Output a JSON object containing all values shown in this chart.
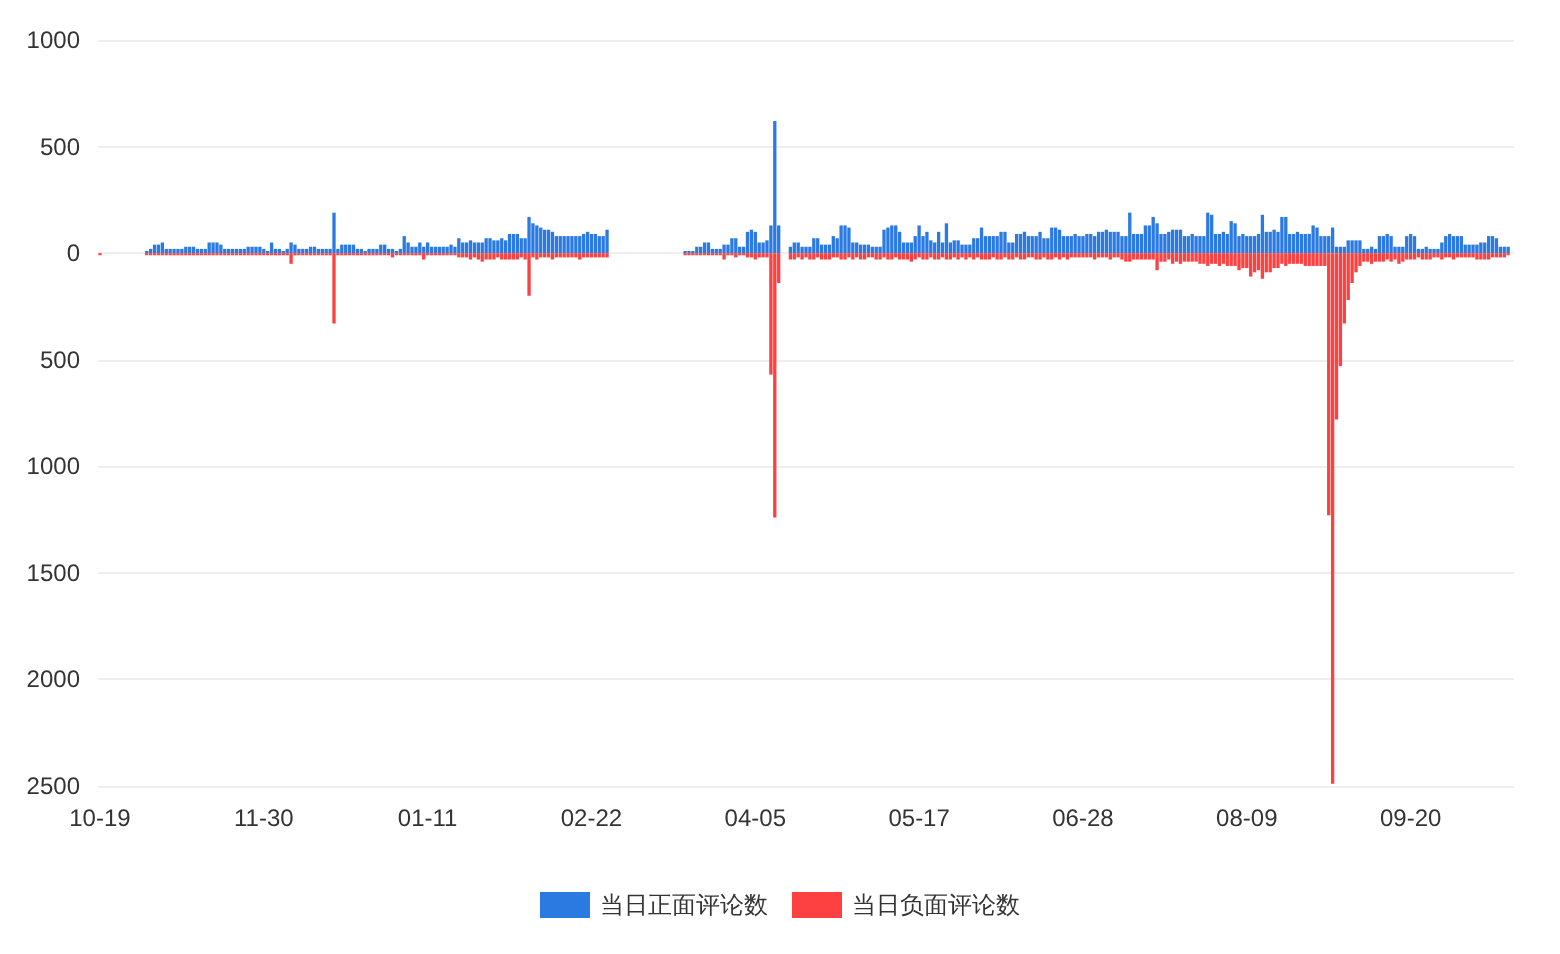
{
  "chart_data": {
    "type": "bar",
    "stacked": true,
    "grid": "y",
    "legend": "bottom",
    "categories": [
      "10-19",
      null,
      null,
      null,
      null,
      null,
      null,
      null,
      null,
      null,
      null,
      null,
      null,
      null,
      null,
      null,
      null,
      null,
      null,
      null,
      null,
      null,
      null,
      null,
      null,
      null,
      null,
      null,
      null,
      null,
      null,
      null,
      null,
      null,
      null,
      null,
      null,
      null,
      null,
      null,
      null,
      null,
      "11-30",
      null,
      null,
      null,
      null,
      null,
      null,
      null,
      null,
      null,
      null,
      null,
      null,
      null,
      null,
      null,
      null,
      null,
      null,
      null,
      null,
      null,
      null,
      null,
      null,
      null,
      null,
      null,
      null,
      null,
      null,
      null,
      null,
      null,
      null,
      null,
      null,
      null,
      null,
      null,
      null,
      null,
      "01-11",
      null,
      null,
      null,
      null,
      null,
      null,
      null,
      null,
      null,
      null,
      null,
      null,
      null,
      null,
      null,
      null,
      null,
      null,
      null,
      null,
      null,
      null,
      null,
      null,
      null,
      null,
      null,
      null,
      null,
      null,
      null,
      null,
      null,
      null,
      null,
      null,
      null,
      null,
      null,
      null,
      null,
      "02-22",
      null,
      null,
      null,
      null,
      null,
      null,
      null,
      null,
      null,
      null,
      null,
      null,
      null,
      null,
      null,
      null,
      null,
      null,
      null,
      null,
      null,
      null,
      null,
      null,
      null,
      null,
      null,
      null,
      null,
      null,
      null,
      null,
      null,
      null,
      null,
      null,
      null,
      null,
      null,
      null,
      null,
      "04-05",
      null,
      null,
      null,
      null,
      null,
      null,
      null,
      null,
      null,
      null,
      null,
      null,
      null,
      null,
      null,
      null,
      null,
      null,
      null,
      null,
      null,
      null,
      null,
      null,
      null,
      null,
      null,
      null,
      null,
      null,
      null,
      null,
      null,
      null,
      null,
      null,
      null,
      null,
      null,
      null,
      null,
      "05-17",
      null,
      null,
      null,
      null,
      null,
      null,
      null,
      null,
      null,
      null,
      null,
      null,
      null,
      null,
      null,
      null,
      null,
      null,
      null,
      null,
      null,
      null,
      null,
      null,
      null,
      null,
      null,
      null,
      null,
      null,
      null,
      null,
      null,
      null,
      null,
      null,
      null,
      null,
      null,
      null,
      null,
      "06-28",
      null,
      null,
      null,
      null,
      null,
      null,
      null,
      null,
      null,
      null,
      null,
      null,
      null,
      null,
      null,
      null,
      null,
      null,
      null,
      null,
      null,
      null,
      null,
      null,
      null,
      null,
      null,
      null,
      null,
      null,
      null,
      null,
      null,
      null,
      null,
      null,
      null,
      null,
      null,
      null,
      null,
      "08-09",
      null,
      null,
      null,
      null,
      null,
      null,
      null,
      null,
      null,
      null,
      null,
      null,
      null,
      null,
      null,
      null,
      null,
      null,
      null,
      null,
      null,
      null,
      null,
      null,
      null,
      null,
      null,
      null,
      null,
      null,
      null,
      null,
      null,
      null,
      null,
      null,
      null,
      null,
      null,
      null,
      null,
      "09-20",
      null,
      null,
      null,
      null,
      null,
      null,
      null,
      null,
      null,
      null,
      null,
      null,
      null,
      null,
      null,
      null,
      null,
      null,
      null,
      null,
      null,
      null,
      null,
      null,
      null,
      null
    ],
    "ylim": [
      -2500,
      1000
    ],
    "yticks": [
      {
        "value": -2500,
        "label": "2500"
      },
      {
        "value": -2000,
        "label": "2000"
      },
      {
        "value": -1500,
        "label": "1500"
      },
      {
        "value": -1000,
        "label": "1000"
      },
      {
        "value": -500,
        "label": "500"
      },
      0,
      500,
      1000
    ],
    "series": [
      {
        "name": "当日正面评论数",
        "color": "#2a7ae2",
        "values": [
          null,
          null,
          null,
          null,
          null,
          null,
          null,
          null,
          null,
          null,
          null,
          null,
          10,
          20,
          40,
          40,
          50,
          20,
          20,
          20,
          20,
          20,
          30,
          30,
          30,
          20,
          20,
          20,
          50,
          50,
          50,
          40,
          20,
          20,
          20,
          20,
          20,
          20,
          30,
          30,
          30,
          30,
          20,
          10,
          50,
          20,
          20,
          10,
          20,
          50,
          40,
          20,
          20,
          20,
          30,
          30,
          20,
          20,
          20,
          20,
          190,
          20,
          40,
          40,
          40,
          40,
          20,
          20,
          10,
          20,
          20,
          20,
          40,
          40,
          20,
          20,
          10,
          20,
          80,
          50,
          30,
          30,
          50,
          30,
          50,
          30,
          30,
          30,
          30,
          30,
          40,
          30,
          70,
          50,
          50,
          60,
          50,
          50,
          50,
          70,
          70,
          60,
          60,
          70,
          60,
          90,
          90,
          90,
          70,
          70,
          170,
          140,
          130,
          120,
          110,
          110,
          100,
          80,
          80,
          80,
          80,
          80,
          80,
          80,
          90,
          100,
          90,
          90,
          80,
          80,
          110,
          null,
          null,
          null,
          null,
          null,
          null,
          null,
          null,
          null,
          null,
          null,
          null,
          null,
          null,
          null,
          null,
          null,
          null,
          null,
          10,
          10,
          10,
          30,
          30,
          50,
          50,
          20,
          20,
          20,
          40,
          40,
          70,
          70,
          30,
          30,
          100,
          110,
          100,
          50,
          50,
          60,
          130,
          620,
          130,
          null,
          null,
          30,
          50,
          50,
          30,
          30,
          30,
          70,
          70,
          40,
          40,
          40,
          80,
          70,
          130,
          130,
          120,
          50,
          50,
          40,
          40,
          40,
          30,
          30,
          30,
          110,
          120,
          130,
          130,
          100,
          50,
          50,
          50,
          80,
          130,
          80,
          100,
          60,
          50,
          100,
          50,
          140,
          50,
          60,
          60,
          40,
          40,
          40,
          70,
          70,
          120,
          80,
          80,
          80,
          80,
          100,
          100,
          50,
          50,
          90,
          90,
          100,
          80,
          80,
          80,
          100,
          70,
          70,
          120,
          120,
          110,
          80,
          80,
          80,
          90,
          80,
          80,
          90,
          90,
          80,
          100,
          100,
          110,
          100,
          100,
          100,
          80,
          80,
          190,
          90,
          90,
          90,
          130,
          130,
          170,
          140,
          90,
          90,
          100,
          110,
          110,
          110,
          80,
          80,
          90,
          80,
          80,
          80,
          190,
          180,
          90,
          90,
          100,
          90,
          150,
          140,
          80,
          90,
          80,
          80,
          80,
          90,
          180,
          100,
          100,
          110,
          100,
          170,
          170,
          90,
          90,
          100,
          90,
          90,
          90,
          130,
          120,
          80,
          80,
          80,
          120,
          30,
          30,
          30,
          60,
          60,
          60,
          60,
          20,
          20,
          30,
          20,
          80,
          80,
          90,
          80,
          30,
          30,
          30,
          80,
          90,
          80,
          20,
          20,
          30,
          20,
          20,
          20,
          50,
          80,
          90,
          80,
          80,
          80,
          40,
          40,
          40,
          40,
          50,
          50,
          80,
          80,
          70,
          30,
          30,
          30,
          null
        ]
      },
      {
        "name": "当日负面评论数",
        "color": "#fd4040",
        "values": [
          -10,
          null,
          null,
          null,
          null,
          null,
          null,
          null,
          null,
          null,
          null,
          null,
          -10,
          -10,
          -10,
          -10,
          -10,
          -10,
          -10,
          -10,
          -10,
          -10,
          -10,
          -10,
          -10,
          -10,
          -10,
          -10,
          -10,
          -10,
          -10,
          -10,
          -10,
          -10,
          -10,
          -10,
          -10,
          -10,
          -10,
          -10,
          -10,
          -10,
          -10,
          -10,
          -10,
          -10,
          -10,
          -10,
          -10,
          -50,
          -10,
          -10,
          -10,
          -10,
          -10,
          -10,
          -10,
          -10,
          -10,
          -10,
          -330,
          -10,
          -10,
          -10,
          -10,
          -10,
          -10,
          -10,
          -10,
          -10,
          -10,
          -10,
          -10,
          -10,
          -10,
          -20,
          -10,
          -10,
          -10,
          -10,
          -10,
          -10,
          -10,
          -30,
          -10,
          -10,
          -10,
          -10,
          -10,
          -10,
          -10,
          -10,
          -20,
          -20,
          -20,
          -30,
          -20,
          -30,
          -40,
          -30,
          -30,
          -30,
          -20,
          -30,
          -30,
          -30,
          -30,
          -30,
          -20,
          -30,
          -200,
          -20,
          -30,
          -20,
          -20,
          -20,
          -30,
          -20,
          -20,
          -20,
          -20,
          -20,
          -20,
          -30,
          -20,
          -20,
          -20,
          -20,
          -20,
          -20,
          -20,
          null,
          null,
          null,
          null,
          null,
          null,
          null,
          null,
          null,
          null,
          null,
          null,
          null,
          null,
          null,
          null,
          null,
          null,
          null,
          -10,
          -10,
          -10,
          -10,
          -10,
          -10,
          -10,
          -10,
          -10,
          -10,
          -30,
          -10,
          -10,
          -20,
          -10,
          -10,
          -20,
          -20,
          -30,
          -20,
          -20,
          -20,
          -570,
          -1240,
          -140,
          null,
          null,
          -30,
          -30,
          -20,
          -30,
          -20,
          -30,
          -30,
          -20,
          -30,
          -30,
          -30,
          -20,
          -20,
          -30,
          -30,
          -20,
          -30,
          -20,
          -30,
          -30,
          -20,
          -20,
          -30,
          -30,
          -20,
          -30,
          -30,
          -20,
          -30,
          -30,
          -30,
          -40,
          -30,
          -20,
          -30,
          -30,
          -20,
          -30,
          -30,
          -20,
          -30,
          -30,
          -20,
          -30,
          -20,
          -30,
          -20,
          -30,
          -20,
          -30,
          -30,
          -30,
          -20,
          -30,
          -30,
          -20,
          -30,
          -30,
          -20,
          -30,
          -30,
          -20,
          -20,
          -30,
          -30,
          -20,
          -30,
          -30,
          -20,
          -30,
          -20,
          -30,
          -20,
          -20,
          -20,
          -20,
          -20,
          -20,
          -30,
          -20,
          -20,
          -20,
          -30,
          -20,
          -20,
          -30,
          -40,
          -40,
          -30,
          -30,
          -30,
          -30,
          -30,
          -30,
          -80,
          -40,
          -40,
          -30,
          -50,
          -40,
          -50,
          -40,
          -40,
          -40,
          -40,
          -50,
          -50,
          -60,
          -50,
          -50,
          -60,
          -50,
          -60,
          -60,
          -60,
          -80,
          -70,
          -70,
          -110,
          -90,
          -80,
          -120,
          -90,
          -90,
          -70,
          -70,
          -50,
          -60,
          -50,
          -50,
          -50,
          -50,
          -60,
          -60,
          -60,
          -60,
          -60,
          -60,
          -1230,
          -2490,
          -780,
          -530,
          -330,
          -220,
          -140,
          -90,
          -60,
          -40,
          -40,
          -50,
          -40,
          -40,
          -40,
          -30,
          -40,
          -30,
          -50,
          -40,
          -30,
          -30,
          -30,
          -20,
          -30,
          -30,
          -30,
          -20,
          -20,
          -30,
          -20,
          -20,
          -30,
          -20,
          -20,
          -20,
          -20,
          -20,
          -30,
          -30,
          -30,
          -30,
          -20,
          -20,
          -20,
          -20,
          -10,
          null
        ]
      }
    ]
  }
}
